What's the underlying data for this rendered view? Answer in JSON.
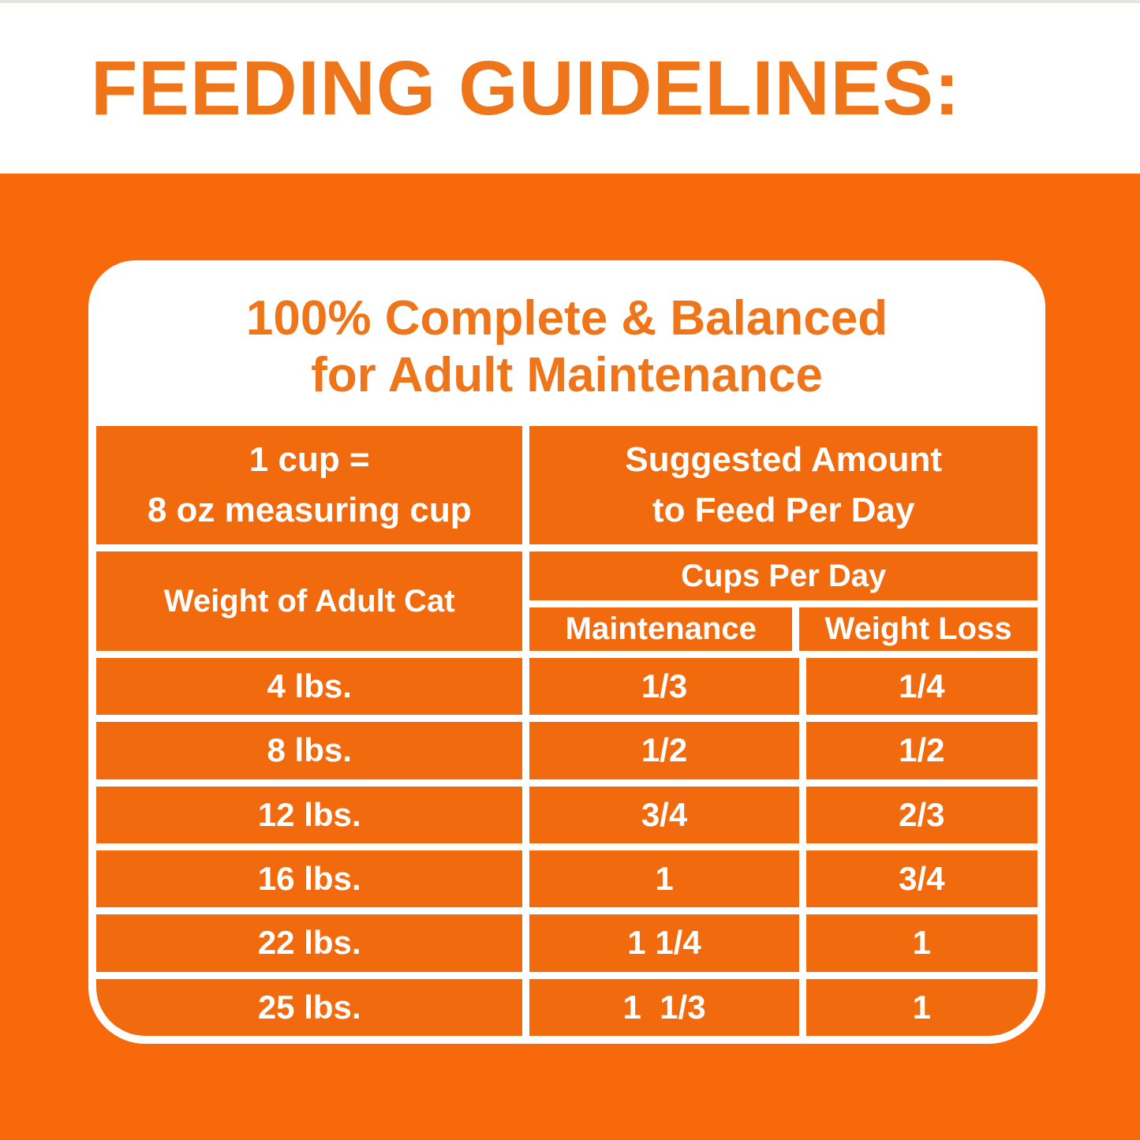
{
  "title": "FEEDING GUIDELINES:",
  "card": {
    "heading": {
      "line1": "100% Complete & Balanced",
      "line2": "for Adult Maintenance"
    },
    "cup_note": {
      "line1": "1 cup =",
      "line2": "8 oz measuring cup"
    },
    "suggested": {
      "line1": "Suggested Amount",
      "line2": "to Feed Per Day"
    },
    "table": {
      "weight_header": "Weight of Adult Cat",
      "cups_per_day_header": "Cups Per Day",
      "col_maintenance": "Maintenance",
      "col_weight_loss": "Weight Loss",
      "rows": [
        {
          "weight": "4 lbs.",
          "maintenance": "1/3",
          "weight_loss": "1/4"
        },
        {
          "weight": "8 lbs.",
          "maintenance": "1/2",
          "weight_loss": "1/2"
        },
        {
          "weight": "12 lbs.",
          "maintenance": "3/4",
          "weight_loss": "2/3"
        },
        {
          "weight": "16 lbs.",
          "maintenance": "1",
          "weight_loss": "3/4"
        },
        {
          "weight": "22 lbs.",
          "maintenance": "1 1/4",
          "weight_loss": "1"
        },
        {
          "weight": "25 lbs.",
          "maintenance": "1  1/3",
          "weight_loss": "1"
        }
      ]
    }
  },
  "colors": {
    "background_orange": "#F7690A",
    "cell_orange": "#F26A0E",
    "heading_text_orange": "#EE7519",
    "gridline_white": "#FFFFFF"
  }
}
